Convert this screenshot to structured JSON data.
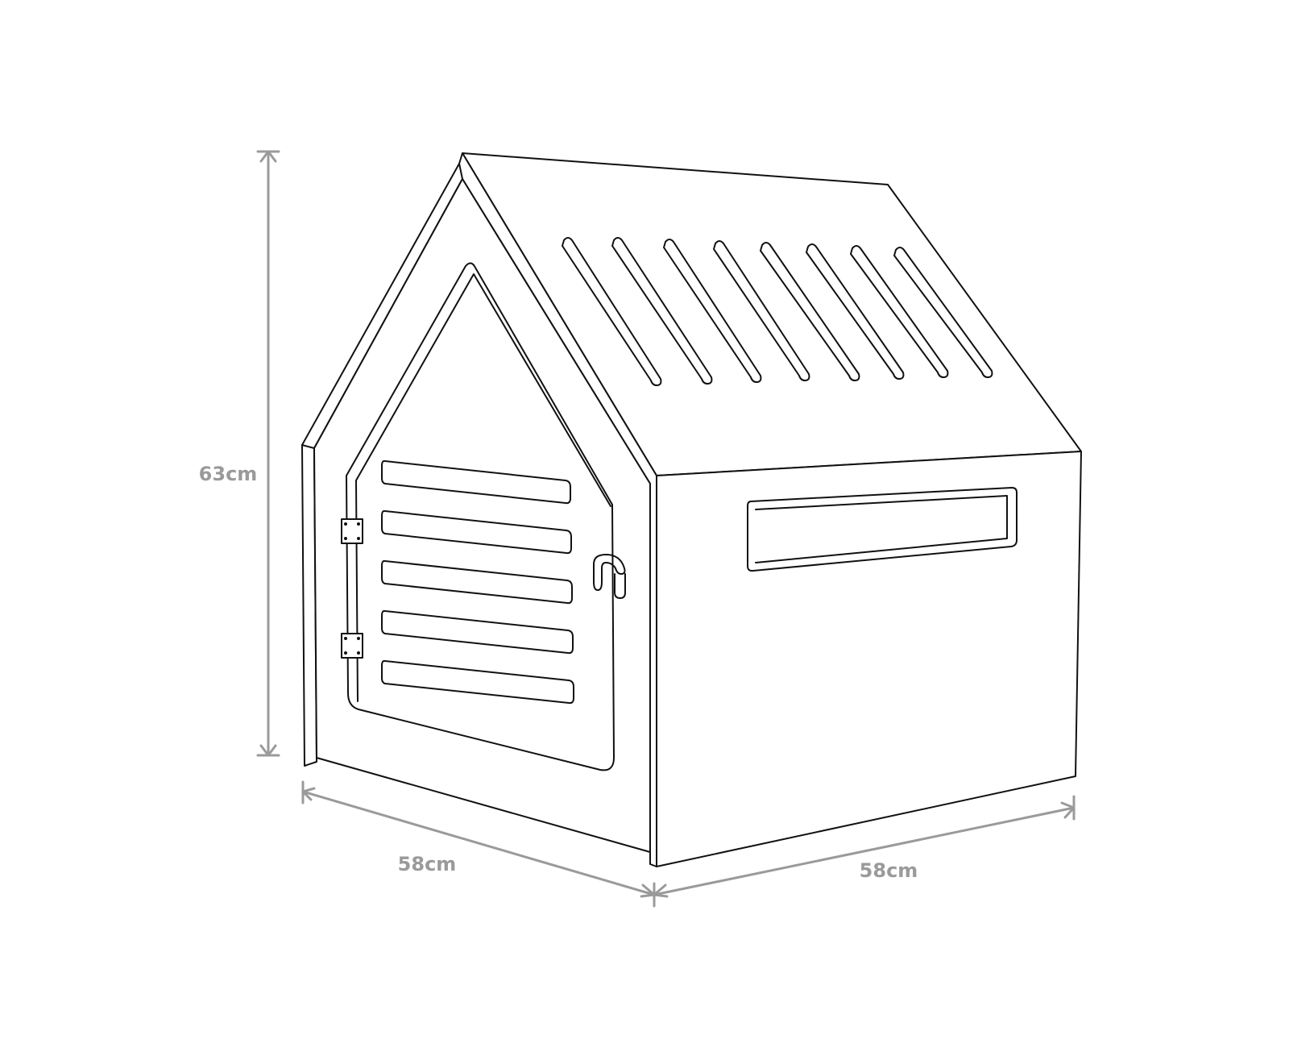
{
  "dimensions": {
    "height": "63cm",
    "depth": "58cm",
    "width": "58cm"
  },
  "colors": {
    "line": "#111111",
    "dimension": "#9a9a9a",
    "background": "#ffffff"
  }
}
